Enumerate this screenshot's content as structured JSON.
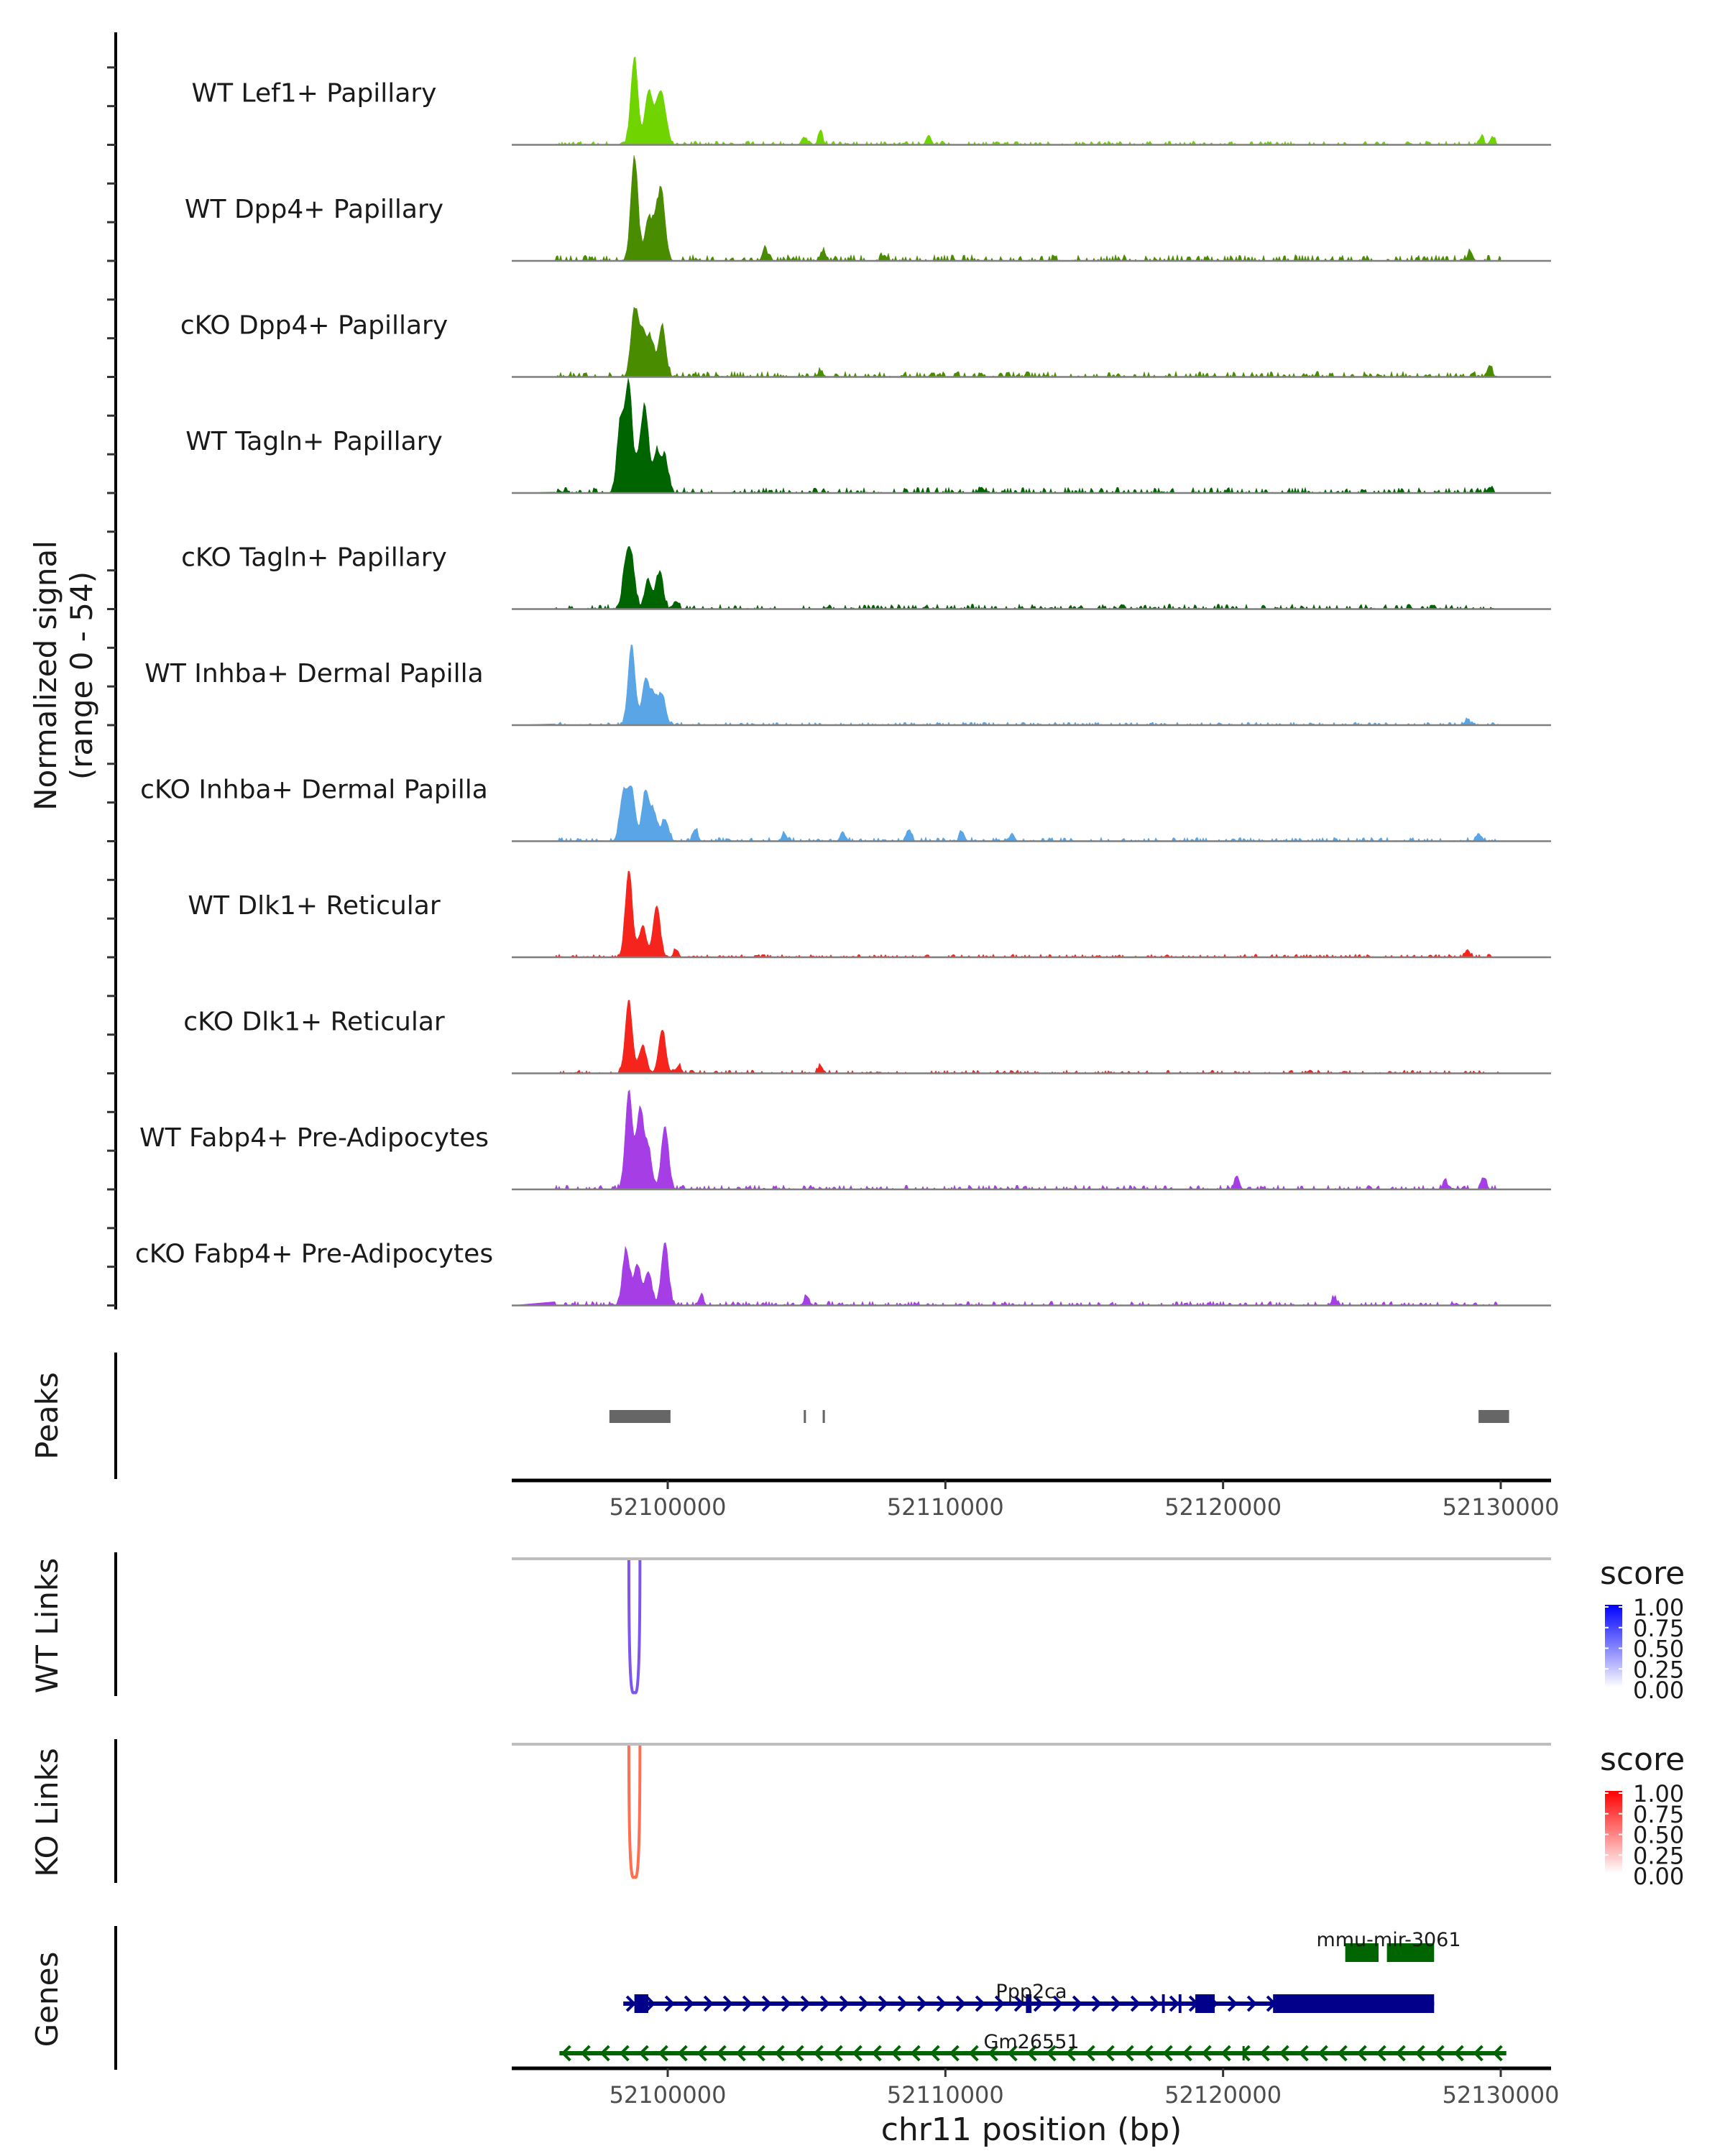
{
  "chart_data": {
    "type": "area",
    "title": "",
    "region": {
      "chrom": "chr11",
      "start": 52094400,
      "end": 52131800
    },
    "xlabel": "chr11 position (bp)",
    "xticks": [
      52100000,
      52110000,
      52120000,
      52130000
    ],
    "xtick_labels": [
      "52100000",
      "52110000",
      "52120000",
      "52130000"
    ],
    "coverage": {
      "ylabel_line1": "Normalized signal",
      "ylabel_line2": "(range 0 - 54)",
      "ylim": [
        0,
        54
      ],
      "tracks": [
        {
          "name": "WT Lef1+ Papillary",
          "color": "#6fd400",
          "peaks": [
            [
              52098800,
              44
            ],
            [
              52099300,
              26
            ],
            [
              52099600,
              15
            ],
            [
              52099800,
              21
            ],
            [
              52100000,
              4
            ],
            [
              52104900,
              4
            ],
            [
              52105500,
              6
            ],
            [
              52109400,
              5
            ],
            [
              52129300,
              4
            ],
            [
              52129700,
              4
            ]
          ],
          "noise": 1.2
        },
        {
          "name": "WT Dpp4+ Papillary",
          "color": "#4a8c00",
          "peaks": [
            [
              52098800,
              52
            ],
            [
              52099300,
              21
            ],
            [
              52099600,
              18
            ],
            [
              52099800,
              28
            ],
            [
              52103500,
              7
            ],
            [
              52105600,
              5
            ],
            [
              52107800,
              3
            ],
            [
              52128900,
              5
            ]
          ],
          "noise": 2.0
        },
        {
          "name": "cKO Dpp4+ Papillary",
          "color": "#4a8c00",
          "peaks": [
            [
              52098800,
              33
            ],
            [
              52099100,
              22
            ],
            [
              52099400,
              18
            ],
            [
              52099800,
              26
            ],
            [
              52105500,
              3
            ],
            [
              52129600,
              6
            ]
          ],
          "noise": 1.8
        },
        {
          "name": "WT Tagln+ Papillary",
          "color": "#006400",
          "peaks": [
            [
              52098600,
              54
            ],
            [
              52098300,
              35
            ],
            [
              52099200,
              37
            ],
            [
              52099000,
              17
            ],
            [
              52099600,
              20
            ],
            [
              52099900,
              17
            ],
            [
              52111300,
              3
            ],
            [
              52129600,
              3
            ]
          ],
          "noise": 1.8
        },
        {
          "name": "cKO Tagln+ Papillary",
          "color": "#006400",
          "peaks": [
            [
              52098500,
              21
            ],
            [
              52098700,
              22
            ],
            [
              52099300,
              14
            ],
            [
              52099700,
              18
            ],
            [
              52100300,
              4
            ]
          ],
          "noise": 1.6
        },
        {
          "name": "WT Inhba+ Dermal Papilla",
          "color": "#5aa5e6",
          "peaks": [
            [
              52098700,
              40
            ],
            [
              52099200,
              23
            ],
            [
              52099500,
              14
            ],
            [
              52099800,
              15
            ],
            [
              52128800,
              3
            ]
          ],
          "noise": 1.0
        },
        {
          "name": "cKO Inhba+ Dermal Papilla",
          "color": "#5aa5e6",
          "peaks": [
            [
              52098400,
              24
            ],
            [
              52098700,
              26
            ],
            [
              52099200,
              25
            ],
            [
              52099500,
              14
            ],
            [
              52099900,
              11
            ],
            [
              52101000,
              6
            ],
            [
              52104200,
              4
            ],
            [
              52106300,
              5
            ],
            [
              52108700,
              6
            ],
            [
              52110600,
              5
            ],
            [
              52112400,
              4
            ],
            [
              52129200,
              4
            ]
          ],
          "noise": 1.3
        },
        {
          "name": "WT Dlk1+ Reticular",
          "color": "#f5251e",
          "peaks": [
            [
              52098600,
              44
            ],
            [
              52099100,
              16
            ],
            [
              52099600,
              26
            ],
            [
              52100300,
              4
            ],
            [
              52128800,
              4
            ]
          ],
          "noise": 1.0
        },
        {
          "name": "cKO Dlk1+ Reticular",
          "color": "#f5251e",
          "peaks": [
            [
              52098600,
              36
            ],
            [
              52099100,
              14
            ],
            [
              52099800,
              22
            ],
            [
              52100400,
              4
            ],
            [
              52105500,
              4
            ]
          ],
          "noise": 1.1
        },
        {
          "name": "WT Fabp4+ Pre-Adipocytes",
          "color": "#a63ee6",
          "peaks": [
            [
              52098600,
              49
            ],
            [
              52099000,
              40
            ],
            [
              52099300,
              20
            ],
            [
              52099900,
              32
            ],
            [
              52120500,
              7
            ],
            [
              52128000,
              4
            ],
            [
              52129400,
              6
            ]
          ],
          "noise": 1.4
        },
        {
          "name": "cKO Fabp4+ Pre-Adipocytes",
          "color": "#a63ee6",
          "peaks": [
            [
              52098500,
              28
            ],
            [
              52098900,
              20
            ],
            [
              52099300,
              17
            ],
            [
              52099900,
              32
            ],
            [
              52101200,
              5
            ],
            [
              52105000,
              5
            ],
            [
              52124000,
              4
            ]
          ],
          "noise": 1.4
        }
      ]
    },
    "peaks_track": {
      "label": "Peaks",
      "color": "#666666",
      "intervals": [
        [
          52097900,
          52100100
        ],
        [
          52104900,
          52104960
        ],
        [
          52105580,
          52105660
        ],
        [
          52129200,
          52130300
        ]
      ]
    },
    "links": [
      {
        "label": "WT Links",
        "color": "#7f55f0",
        "start": 52098600,
        "end": 52099000,
        "score": 0.7,
        "legend": {
          "title": "score",
          "low": "#ffffff",
          "high": "#0000ff",
          "ticks": [
            "1.00",
            "0.75",
            "0.50",
            "0.25",
            "0.00"
          ]
        }
      },
      {
        "label": "KO Links",
        "color": "#ff6f50",
        "start": 52098600,
        "end": 52099000,
        "score": 0.6,
        "legend": {
          "title": "score",
          "low": "#ffffff",
          "high": "#ff0000",
          "ticks": [
            "1.00",
            "0.75",
            "0.50",
            "0.25",
            "0.00"
          ]
        }
      }
    ],
    "genes": {
      "label": "Genes",
      "items": [
        {
          "name": "mmu-mir-3061",
          "color": "#006400",
          "strand": "+",
          "start": 52124400,
          "end": 52127600,
          "exons": [
            [
              52124400,
              52125600
            ],
            [
              52125900,
              52127600
            ]
          ]
        },
        {
          "name": "Ppp2ca",
          "color": "#00008b",
          "strand": "+",
          "start": 52098400,
          "end": 52127600,
          "exons": [
            [
              52098800,
              52099300
            ],
            [
              52112900,
              52113100
            ],
            [
              52117800,
              52117900
            ],
            [
              52118400,
              52118500
            ],
            [
              52119000,
              52119700
            ],
            [
              52121800,
              52127600
            ]
          ]
        },
        {
          "name": "Gm26551",
          "color": "#006400",
          "strand": "-",
          "start": 52096100,
          "end": 52130200,
          "exons": [
            [
              52120700,
              52120750
            ]
          ]
        }
      ]
    }
  }
}
